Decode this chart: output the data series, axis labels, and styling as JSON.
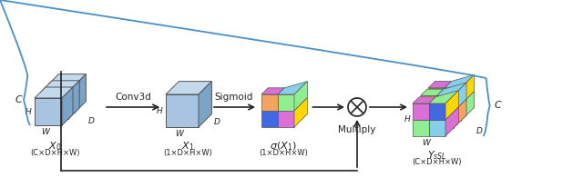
{
  "figsize": [
    6.4,
    2.06
  ],
  "dpi": 100,
  "bg_color": "#ffffff",
  "cube_blue_face": "#a8c4e0",
  "cube_blue_top": "#c5d9ec",
  "cube_blue_side": "#7aa3c8",
  "arrow_color": "#222222",
  "brace_color": "#4a90c8",
  "label_color": "#222222",
  "annotations": {
    "X0_dim": "(C×D×H×W)",
    "X1_dim": "(1×D×H×W)",
    "sigX1_dim": "(1×D×H×W)",
    "Y_dim": "(C×D×H×W)",
    "conv_label": "Conv3d",
    "sigmoid_label": "Sigmoid",
    "multiply_label": "Multiply",
    "H_label": "H",
    "W_label": "W",
    "D_label": "D",
    "C_label": "C"
  }
}
